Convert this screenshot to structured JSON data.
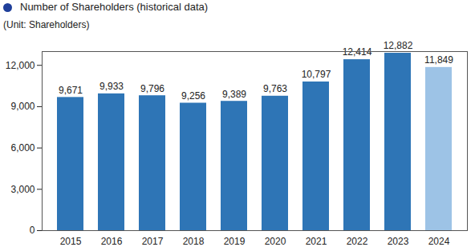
{
  "chart_data": {
    "type": "bar",
    "title": "Number of Shareholders (historical data)",
    "subtitle": "(Unit: Shareholders)",
    "categories": [
      "2015",
      "2016",
      "2017",
      "2018",
      "2019",
      "2020",
      "2021",
      "2022",
      "2023",
      "2024"
    ],
    "values": [
      9671,
      9933,
      9796,
      9256,
      9389,
      9763,
      10797,
      12414,
      12882,
      11849
    ],
    "value_labels": [
      "9,671",
      "9,933",
      "9,796",
      "9,256",
      "9,389",
      "9,763",
      "10,797",
      "12,414",
      "12,882",
      "11,849"
    ],
    "colors": [
      "#2e75b6",
      "#2e75b6",
      "#2e75b6",
      "#2e75b6",
      "#2e75b6",
      "#2e75b6",
      "#2e75b6",
      "#2e75b6",
      "#2e75b6",
      "#9dc3e6"
    ],
    "ylim": [
      0,
      13000
    ],
    "yticks": [
      0,
      {
        "value": 3000,
        "label": "3,000"
      },
      {
        "value": 6000,
        "label": "6,000"
      },
      {
        "value": 9000,
        "label": "9,000"
      },
      {
        "value": 12000,
        "label": "12,000"
      }
    ],
    "grid": false,
    "data_labels": true
  }
}
